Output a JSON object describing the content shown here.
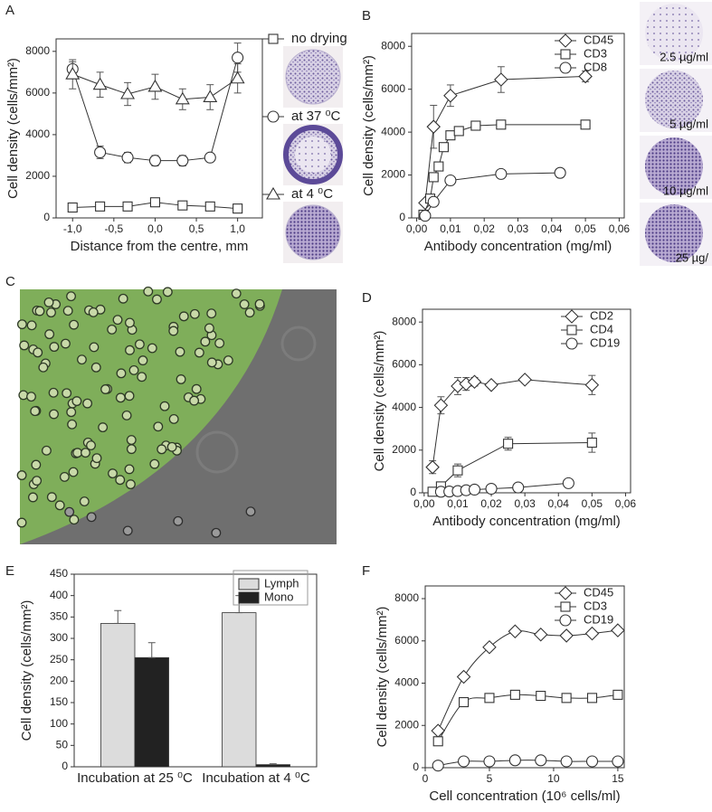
{
  "chart_data": [
    {
      "panel": "A",
      "type": "line",
      "ylabel": "Cell density (cells/mm²)",
      "xlabel": "Distance from the centre, mm",
      "x": [
        -1,
        -0.667,
        -0.333,
        0,
        0.333,
        0.667,
        1
      ],
      "xlim": [
        -1.2,
        1.3
      ],
      "ylim": [
        0,
        8600
      ],
      "xticks": [
        {
          "value": -1,
          "label": "-1,0"
        },
        {
          "value": -0.5,
          "label": "-0,5"
        },
        {
          "value": 0,
          "label": "0,0"
        },
        {
          "value": 0.5,
          "label": "0,5"
        },
        {
          "value": 1,
          "label": "1,0"
        }
      ],
      "yticks": [
        0,
        2000,
        4000,
        6000,
        8000
      ],
      "legend": "right",
      "series": [
        {
          "name": "no drying",
          "marker": "square",
          "color": "#333333",
          "values": [
            500,
            550,
            550,
            750,
            600,
            550,
            450
          ],
          "errors": [
            100,
            100,
            100,
            100,
            100,
            100,
            120
          ]
        },
        {
          "name": "at 37 ⁰C",
          "marker": "circle",
          "color": "#333333",
          "values": [
            7150,
            3150,
            2900,
            2750,
            2750,
            2900,
            7700
          ],
          "errors": [
            350,
            300,
            250,
            250,
            250,
            200,
            700
          ]
        },
        {
          "name": "at 4 ⁰C",
          "marker": "triangle",
          "color": "#333333",
          "values": [
            6900,
            6400,
            5950,
            6300,
            5700,
            5800,
            6700
          ],
          "errors": [
            700,
            600,
            550,
            600,
            500,
            600,
            700
          ]
        }
      ]
    },
    {
      "panel": "B",
      "type": "line",
      "ylabel": "Cell density (cells/mm²)",
      "xlabel": "Antibody concentration (mg/ml)",
      "xlim": [
        -0.0015,
        0.0615
      ],
      "ylim": [
        0,
        8600
      ],
      "xticks": [
        {
          "value": 0,
          "label": "0,00"
        },
        {
          "value": 0.01,
          "label": "0,01"
        },
        {
          "value": 0.02,
          "label": "0,02"
        },
        {
          "value": 0.03,
          "label": "0,03"
        },
        {
          "value": 0.04,
          "label": "0,04"
        },
        {
          "value": 0.05,
          "label": "0,05"
        },
        {
          "value": 0.06,
          "label": "0,06"
        }
      ],
      "yticks": [
        0,
        2000,
        4000,
        6000,
        8000
      ],
      "legend": "upper right",
      "image_labels": [
        "2.5 µg/ml",
        "5 µg/ml",
        "10 µg/ml",
        "25 µg/"
      ],
      "series": [
        {
          "name": "CD45",
          "marker": "diamond",
          "color": "#333333",
          "x": [
            0.0025,
            0.005,
            0.01,
            0.025,
            0.05
          ],
          "values": [
            700,
            4250,
            5700,
            6450,
            6600
          ],
          "errors": [
            null,
            1000,
            500,
            600,
            250
          ]
        },
        {
          "name": "CD3",
          "marker": "square",
          "color": "#333333",
          "x": [
            0.002,
            0.004,
            0.005,
            0.0065,
            0.008,
            0.01,
            0.0125,
            0.0175,
            0.025,
            0.05
          ],
          "values": [
            150,
            900,
            1900,
            2400,
            3300,
            3850,
            4050,
            4300,
            4350,
            4350
          ]
        },
        {
          "name": "CD8",
          "marker": "circle",
          "color": "#333333",
          "x": [
            0.0025,
            0.005,
            0.01,
            0.025,
            0.0425
          ],
          "values": [
            100,
            750,
            1750,
            2050,
            2100
          ]
        }
      ]
    },
    {
      "panel": "D",
      "type": "line",
      "ylabel": "Cell density (cells/mm²)",
      "xlabel": "Antibody concentration (mg/ml)",
      "xlim": [
        -0.0005,
        0.0615
      ],
      "ylim": [
        0,
        8600
      ],
      "xticks": [
        {
          "value": 0,
          "label": "0,00"
        },
        {
          "value": 0.01,
          "label": "0,01"
        },
        {
          "value": 0.02,
          "label": "0,02"
        },
        {
          "value": 0.03,
          "label": "0,03"
        },
        {
          "value": 0.04,
          "label": "0,04"
        },
        {
          "value": 0.05,
          "label": "0,05"
        },
        {
          "value": 0.06,
          "label": "0,06"
        }
      ],
      "yticks": [
        0,
        2000,
        4000,
        6000,
        8000
      ],
      "legend": "upper right",
      "series": [
        {
          "name": "CD2",
          "marker": "diamond",
          "color": "#333333",
          "x": [
            0.0025,
            0.005,
            0.01,
            0.0125,
            0.015,
            0.02,
            0.03,
            0.05
          ],
          "values": [
            1200,
            4100,
            5000,
            5100,
            5200,
            5050,
            5300,
            5050
          ],
          "errors": [
            300,
            400,
            400,
            300,
            200,
            150,
            150,
            450
          ]
        },
        {
          "name": "CD4",
          "marker": "square",
          "color": "#333333",
          "x": [
            0.0025,
            0.005,
            0.01,
            0.025,
            0.05
          ],
          "values": [
            50,
            300,
            1050,
            2300,
            2350
          ],
          "errors": [
            null,
            null,
            300,
            300,
            450
          ]
        },
        {
          "name": "CD19",
          "marker": "circle",
          "color": "#333333",
          "x": [
            0.005,
            0.0075,
            0.01,
            0.0125,
            0.015,
            0.02,
            0.028,
            0.043
          ],
          "values": [
            50,
            60,
            80,
            120,
            150,
            190,
            250,
            450
          ]
        }
      ]
    },
    {
      "panel": "E",
      "type": "bar",
      "ylabel": "Cell density (cells/mm²)",
      "categories": [
        "Incubation at 25 ⁰C",
        "Incubation at 4 ⁰C"
      ],
      "ylim": [
        0,
        450
      ],
      "yticks": [
        0,
        50,
        100,
        150,
        200,
        250,
        300,
        350,
        400,
        450
      ],
      "legend": "upper right",
      "series": [
        {
          "name": "Lymph",
          "color": "#dcdcdc",
          "values": [
            335,
            360
          ],
          "errors": [
            30,
            40
          ]
        },
        {
          "name": "Mono",
          "color": "#222222",
          "values": [
            255,
            5
          ],
          "errors": [
            35,
            2
          ]
        }
      ]
    },
    {
      "panel": "F",
      "type": "scatter",
      "smooth": true,
      "ylabel": "Cell density (cells/mm²)",
      "xlabel": "Cell concentration (10⁶ cells/ml)",
      "x": [
        1,
        3,
        5,
        7,
        9,
        11,
        13,
        15
      ],
      "xlim": [
        0,
        15.5
      ],
      "ylim": [
        0,
        8600
      ],
      "xticks": [
        0,
        5,
        10,
        15
      ],
      "yticks": [
        0,
        2000,
        4000,
        6000,
        8000
      ],
      "legend": "upper right",
      "series": [
        {
          "name": "CD45",
          "marker": "diamond",
          "color": "#333333",
          "values": [
            1750,
            4300,
            5700,
            6450,
            6300,
            6250,
            6350,
            6500
          ]
        },
        {
          "name": "CD3",
          "marker": "square",
          "color": "#333333",
          "values": [
            1250,
            3100,
            3300,
            3450,
            3400,
            3300,
            3300,
            3450
          ]
        },
        {
          "name": "CD19",
          "marker": "circle",
          "color": "#333333",
          "values": [
            100,
            300,
            300,
            350,
            350,
            300,
            300,
            300
          ]
        }
      ]
    }
  ],
  "image_panel": {
    "label": "C"
  }
}
